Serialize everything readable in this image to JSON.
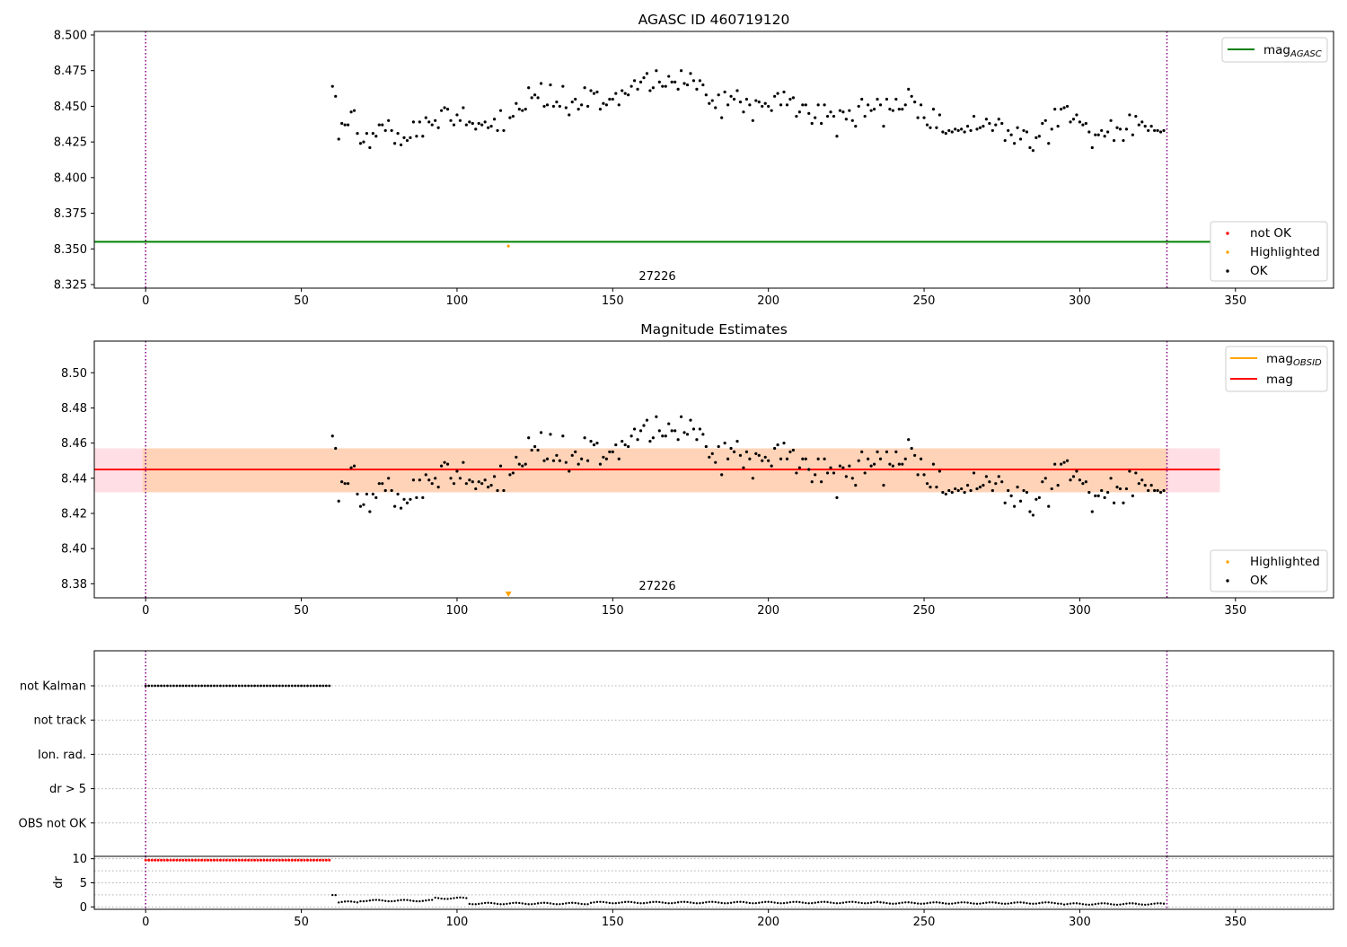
{
  "chart_data": [
    {
      "type": "scatter",
      "title": "AGASC ID 460719120",
      "xlim": [
        -16.5,
        381.5
      ],
      "ylim": [
        8.3225,
        8.5025
      ],
      "xticks": [
        0,
        50,
        100,
        150,
        200,
        250,
        300,
        350
      ],
      "yticks": [
        8.325,
        8.35,
        8.375,
        8.4,
        8.425,
        8.45,
        8.475,
        8.5
      ],
      "ytick_labels": [
        "8.325",
        "8.350",
        "8.375",
        "8.400",
        "8.425",
        "8.450",
        "8.475",
        "8.500"
      ],
      "obsid_label": "27226",
      "obsid_label_x": 164.5,
      "obs_boundaries": [
        0,
        328
      ],
      "mag_agasc": 8.355,
      "legends": {
        "upper_right": [
          {
            "label": "mag",
            "sub": "AGASC",
            "color": "#008000",
            "kind": "line"
          }
        ],
        "lower_right": [
          {
            "label": "not OK",
            "color": "#ff0000",
            "kind": "dot"
          },
          {
            "label": "Highlighted",
            "color": "#ffa500",
            "kind": "dot"
          },
          {
            "label": "OK",
            "color": "#000000",
            "kind": "dot"
          }
        ]
      },
      "highlighted_points": [
        [
          116.5,
          8.352
        ]
      ],
      "ok_points": [
        [
          60,
          8.464
        ],
        [
          61,
          8.457
        ],
        [
          62,
          8.427
        ],
        [
          63,
          8.438
        ],
        [
          64,
          8.437
        ],
        [
          65,
          8.437
        ],
        [
          66,
          8.446
        ],
        [
          67,
          8.447
        ],
        [
          68,
          8.431
        ],
        [
          69,
          8.424
        ],
        [
          70,
          8.425
        ],
        [
          71,
          8.431
        ],
        [
          72,
          8.421
        ],
        [
          73,
          8.431
        ],
        [
          74,
          8.429
        ],
        [
          75,
          8.437
        ],
        [
          76,
          8.437
        ],
        [
          77,
          8.433
        ],
        [
          78,
          8.44
        ],
        [
          79,
          8.433
        ],
        [
          80,
          8.424
        ],
        [
          81,
          8.431
        ],
        [
          82,
          8.423
        ],
        [
          83,
          8.428
        ],
        [
          84,
          8.426
        ],
        [
          85,
          8.428
        ],
        [
          86,
          8.439
        ],
        [
          87,
          8.429
        ],
        [
          88,
          8.439
        ],
        [
          89,
          8.429
        ],
        [
          90,
          8.442
        ],
        [
          91,
          8.439
        ],
        [
          92,
          8.437
        ],
        [
          93,
          8.44
        ],
        [
          94,
          8.435
        ],
        [
          95,
          8.447
        ],
        [
          96,
          8.449
        ],
        [
          97,
          8.448
        ],
        [
          98,
          8.44
        ],
        [
          99,
          8.437
        ],
        [
          100,
          8.444
        ],
        [
          101,
          8.44
        ],
        [
          102,
          8.449
        ],
        [
          103,
          8.437
        ],
        [
          104,
          8.439
        ],
        [
          105,
          8.438
        ],
        [
          106,
          8.434
        ],
        [
          107,
          8.438
        ],
        [
          108,
          8.437
        ],
        [
          109,
          8.439
        ],
        [
          110,
          8.435
        ],
        [
          111,
          8.436
        ],
        [
          112,
          8.441
        ],
        [
          113,
          8.433
        ],
        [
          114,
          8.447
        ],
        [
          115,
          8.433
        ],
        [
          117,
          8.442
        ],
        [
          118,
          8.443
        ],
        [
          119,
          8.452
        ],
        [
          120,
          8.448
        ],
        [
          121,
          8.447
        ],
        [
          122,
          8.448
        ],
        [
          123,
          8.463
        ],
        [
          124,
          8.456
        ],
        [
          125,
          8.458
        ],
        [
          126,
          8.456
        ],
        [
          127,
          8.466
        ],
        [
          128,
          8.45
        ],
        [
          129,
          8.451
        ],
        [
          130,
          8.465
        ],
        [
          131,
          8.45
        ],
        [
          132,
          8.453
        ],
        [
          133,
          8.45
        ],
        [
          134,
          8.464
        ],
        [
          135,
          8.449
        ],
        [
          136,
          8.444
        ],
        [
          137,
          8.453
        ],
        [
          138,
          8.455
        ],
        [
          139,
          8.448
        ],
        [
          140,
          8.451
        ],
        [
          141,
          8.463
        ],
        [
          142,
          8.45
        ],
        [
          143,
          8.461
        ],
        [
          144,
          8.459
        ],
        [
          145,
          8.46
        ],
        [
          146,
          8.448
        ],
        [
          147,
          8.452
        ],
        [
          148,
          8.451
        ],
        [
          149,
          8.455
        ],
        [
          150,
          8.455
        ],
        [
          151,
          8.459
        ],
        [
          152,
          8.451
        ],
        [
          153,
          8.461
        ],
        [
          154,
          8.459
        ],
        [
          155,
          8.458
        ],
        [
          156,
          8.464
        ],
        [
          157,
          8.468
        ],
        [
          158,
          8.462
        ],
        [
          159,
          8.467
        ],
        [
          160,
          8.47
        ],
        [
          161,
          8.473
        ],
        [
          162,
          8.461
        ],
        [
          163,
          8.463
        ],
        [
          164,
          8.475
        ],
        [
          165,
          8.467
        ],
        [
          166,
          8.464
        ],
        [
          167,
          8.464
        ],
        [
          168,
          8.471
        ],
        [
          169,
          8.467
        ],
        [
          170,
          8.467
        ],
        [
          171,
          8.462
        ],
        [
          172,
          8.475
        ],
        [
          173,
          8.466
        ],
        [
          174,
          8.465
        ],
        [
          175,
          8.473
        ],
        [
          176,
          8.468
        ],
        [
          177,
          8.462
        ],
        [
          178,
          8.468
        ],
        [
          179,
          8.465
        ],
        [
          180,
          8.458
        ],
        [
          181,
          8.452
        ],
        [
          182,
          8.454
        ],
        [
          183,
          8.449
        ],
        [
          184,
          8.458
        ],
        [
          185,
          8.442
        ],
        [
          186,
          8.46
        ],
        [
          187,
          8.451
        ],
        [
          188,
          8.457
        ],
        [
          189,
          8.455
        ],
        [
          190,
          8.461
        ],
        [
          191,
          8.453
        ],
        [
          192,
          8.446
        ],
        [
          193,
          8.455
        ],
        [
          194,
          8.451
        ],
        [
          195,
          8.44
        ],
        [
          196,
          8.454
        ],
        [
          197,
          8.453
        ],
        [
          198,
          8.45
        ],
        [
          199,
          8.452
        ],
        [
          200,
          8.45
        ],
        [
          201,
          8.447
        ],
        [
          202,
          8.457
        ],
        [
          203,
          8.459
        ],
        [
          204,
          8.451
        ],
        [
          205,
          8.46
        ],
        [
          206,
          8.451
        ],
        [
          207,
          8.455
        ],
        [
          208,
          8.456
        ],
        [
          209,
          8.443
        ],
        [
          210,
          8.446
        ],
        [
          211,
          8.451
        ],
        [
          212,
          8.451
        ],
        [
          213,
          8.445
        ],
        [
          214,
          8.438
        ],
        [
          215,
          8.442
        ],
        [
          216,
          8.451
        ],
        [
          217,
          8.438
        ],
        [
          218,
          8.451
        ],
        [
          219,
          8.443
        ],
        [
          220,
          8.446
        ],
        [
          221,
          8.443
        ],
        [
          222,
          8.429
        ],
        [
          223,
          8.447
        ],
        [
          224,
          8.446
        ],
        [
          225,
          8.441
        ],
        [
          226,
          8.447
        ],
        [
          227,
          8.44
        ],
        [
          228,
          8.436
        ],
        [
          229,
          8.45
        ],
        [
          230,
          8.455
        ],
        [
          231,
          8.443
        ],
        [
          232,
          8.451
        ],
        [
          233,
          8.447
        ],
        [
          234,
          8.448
        ],
        [
          235,
          8.455
        ],
        [
          236,
          8.451
        ],
        [
          237,
          8.436
        ],
        [
          238,
          8.455
        ],
        [
          239,
          8.448
        ],
        [
          240,
          8.447
        ],
        [
          241,
          8.455
        ],
        [
          242,
          8.448
        ],
        [
          243,
          8.448
        ],
        [
          244,
          8.451
        ],
        [
          245,
          8.462
        ],
        [
          246,
          8.457
        ],
        [
          247,
          8.453
        ],
        [
          248,
          8.442
        ],
        [
          249,
          8.451
        ],
        [
          250,
          8.442
        ],
        [
          251,
          8.437
        ],
        [
          252,
          8.435
        ],
        [
          253,
          8.448
        ],
        [
          254,
          8.435
        ],
        [
          255,
          8.444
        ],
        [
          256,
          8.432
        ],
        [
          257,
          8.431
        ],
        [
          258,
          8.433
        ],
        [
          259,
          8.432
        ],
        [
          260,
          8.434
        ],
        [
          261,
          8.433
        ],
        [
          262,
          8.434
        ],
        [
          263,
          8.432
        ],
        [
          264,
          8.436
        ],
        [
          265,
          8.433
        ],
        [
          266,
          8.443
        ],
        [
          267,
          8.434
        ],
        [
          268,
          8.435
        ],
        [
          269,
          8.436
        ],
        [
          270,
          8.441
        ],
        [
          271,
          8.438
        ],
        [
          272,
          8.433
        ],
        [
          273,
          8.437
        ],
        [
          274,
          8.441
        ],
        [
          275,
          8.438
        ],
        [
          276,
          8.426
        ],
        [
          277,
          8.433
        ],
        [
          278,
          8.43
        ],
        [
          279,
          8.424
        ],
        [
          280,
          8.435
        ],
        [
          281,
          8.427
        ],
        [
          282,
          8.433
        ],
        [
          283,
          8.432
        ],
        [
          284,
          8.421
        ],
        [
          285,
          8.419
        ],
        [
          286,
          8.428
        ],
        [
          287,
          8.429
        ],
        [
          288,
          8.438
        ],
        [
          289,
          8.44
        ],
        [
          290,
          8.424
        ],
        [
          291,
          8.434
        ],
        [
          292,
          8.448
        ],
        [
          293,
          8.436
        ],
        [
          294,
          8.448
        ],
        [
          295,
          8.449
        ],
        [
          296,
          8.45
        ],
        [
          297,
          8.439
        ],
        [
          298,
          8.441
        ],
        [
          299,
          8.444
        ],
        [
          300,
          8.439
        ],
        [
          301,
          8.437
        ],
        [
          302,
          8.438
        ],
        [
          303,
          8.432
        ],
        [
          304,
          8.421
        ],
        [
          305,
          8.43
        ],
        [
          306,
          8.43
        ],
        [
          307,
          8.433
        ],
        [
          308,
          8.429
        ],
        [
          309,
          8.432
        ],
        [
          310,
          8.44
        ],
        [
          311,
          8.426
        ],
        [
          312,
          8.435
        ],
        [
          313,
          8.434
        ],
        [
          314,
          8.426
        ],
        [
          315,
          8.434
        ],
        [
          316,
          8.444
        ],
        [
          317,
          8.43
        ],
        [
          318,
          8.443
        ],
        [
          319,
          8.437
        ],
        [
          320,
          8.439
        ],
        [
          321,
          8.436
        ],
        [
          322,
          8.433
        ],
        [
          323,
          8.436
        ],
        [
          324,
          8.433
        ],
        [
          325,
          8.433
        ],
        [
          326,
          8.432
        ],
        [
          327,
          8.433
        ]
      ]
    },
    {
      "type": "scatter",
      "title": "Magnitude Estimates",
      "xlim": [
        -16.5,
        381.5
      ],
      "ylim": [
        8.372,
        8.518
      ],
      "xticks": [
        0,
        50,
        100,
        150,
        200,
        250,
        300,
        350
      ],
      "yticks": [
        8.38,
        8.4,
        8.42,
        8.44,
        8.46,
        8.48,
        8.5
      ],
      "ytick_labels": [
        "8.38",
        "8.40",
        "8.42",
        "8.44",
        "8.46",
        "8.48",
        "8.50"
      ],
      "obsid_label": "27226",
      "obsid_label_x": 164.5,
      "obs_boundaries": [
        0,
        328
      ],
      "mag": 8.445,
      "mag_band": [
        8.432,
        8.457
      ],
      "mag_obsid": 8.445,
      "mag_obsid_band": [
        8.432,
        8.457
      ],
      "mag_obsid_range": [
        -1,
        328
      ],
      "mag_range": [
        -16.5,
        345
      ],
      "legends": {
        "upper_right": [
          {
            "label": "mag",
            "sub": "OBSID",
            "color": "#ffa500",
            "kind": "line"
          },
          {
            "label": "mag",
            "sub": "",
            "color": "#ff0000",
            "kind": "line"
          }
        ],
        "lower_right": [
          {
            "label": "Highlighted",
            "color": "#ffa500",
            "kind": "dot"
          },
          {
            "label": "OK",
            "color": "#000000",
            "kind": "dot"
          }
        ]
      },
      "highlighted_marker_x": 116.5,
      "ok_points_source": "same as panel 1 ok_points"
    },
    {
      "type": "scatter",
      "title": "",
      "categories": [
        "not Kalman",
        "not track",
        "Ion. rad.",
        "dr > 5",
        "OBS not OK"
      ],
      "xlim": [
        -16.5,
        381.5
      ],
      "obs_boundaries": [
        0,
        328
      ],
      "flag_not_kalman_x_range": [
        0,
        59
      ],
      "flag_step": 1
    },
    {
      "type": "scatter",
      "title": "",
      "ylabel": "dr",
      "xlim": [
        -16.5,
        381.5
      ],
      "ylim": [
        -0.5,
        10.5
      ],
      "yticks": [
        0,
        5,
        10
      ],
      "xticks": [
        0,
        50,
        100,
        150,
        200,
        250,
        300,
        350
      ],
      "obs_boundaries": [
        0,
        328
      ],
      "dr_high_value": 9.7,
      "dr_high_x_range": [
        0,
        59
      ],
      "dr_segments": [
        {
          "x_range": [
            60,
            61
          ],
          "value": 2.6
        },
        {
          "x_range": [
            62,
            68
          ],
          "value": 1.0
        },
        {
          "x_range": [
            69,
            92
          ],
          "value": 1.3
        },
        {
          "x_range": [
            93,
            103
          ],
          "value": 1.8
        },
        {
          "x_range": [
            104,
            142
          ],
          "value": 0.7
        },
        {
          "x_range": [
            143,
            158
          ],
          "value": 0.9
        },
        {
          "x_range": [
            159,
            235
          ],
          "value": 0.9
        },
        {
          "x_range": [
            236,
            294
          ],
          "value": 0.8
        },
        {
          "x_range": [
            295,
            327
          ],
          "value": 0.6
        }
      ]
    }
  ]
}
